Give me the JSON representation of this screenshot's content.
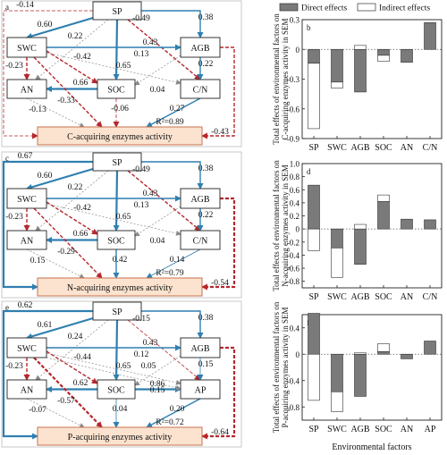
{
  "colors": {
    "positive": "#2f7fb0",
    "negative": "#b5272d",
    "weak": "#8a8a8a",
    "box_fill": "#fbe3cf",
    "box_stroke": "#c9714c",
    "direct_fill": "#7a7a7a",
    "indirect_fill": "#ffffff",
    "axis": "#222222"
  },
  "legend": {
    "direct": "Direct effects",
    "indirect": "Indirect effects"
  },
  "x_axis_title": "Environmental factors",
  "sem_panels": [
    {
      "letter": "a",
      "outcome": "C-acquiring enzymes activity",
      "r2": "R²=0.89",
      "end_node": "C/N",
      "coefficients": {
        "sp_curve": "-0.14",
        "sp_swc": "0.60",
        "sp_agb": "0.38",
        "sp_an": "0.22",
        "sp_cn": "-0.49",
        "swc_agb": "0.43",
        "swc_soc": "-0.42",
        "swc_cn": "0.13",
        "sp_soc": "0.65",
        "swc_an": "-0.23",
        "agb_cn": "0.22",
        "soc_an": "0.66",
        "agb_soc": "0.04",
        "swc_out": "-0.33",
        "soc_out": "-0.06",
        "an_out": "-0.13",
        "cn_out": "0.27",
        "agb_out": "-0.43"
      }
    },
    {
      "letter": "c",
      "outcome": "N-acquiring enzymes activity",
      "r2": "R²=0.79",
      "end_node": "C/N",
      "coefficients": {
        "sp_curve": "0.67",
        "sp_swc": "0.60",
        "sp_agb": "0.38",
        "sp_an": "0.22",
        "sp_cn": "-0.49",
        "swc_agb": "0.43",
        "swc_soc": "-0.42",
        "swc_cn": "0.13",
        "sp_soc": "0.65",
        "swc_an": "-0.23",
        "agb_cn": "0.22",
        "soc_an": "0.66",
        "agb_soc": "0.04",
        "swc_out": "-0.29",
        "soc_out": "0.42",
        "an_out": "0.15",
        "cn_out": "0.14",
        "agb_out": "-0.54"
      }
    },
    {
      "letter": "e",
      "outcome": "P-acquiring enzymes activity",
      "r2": "R²=0.72",
      "end_node": "AP",
      "coefficients": {
        "sp_curve": "0.62",
        "sp_swc": "0.61",
        "sp_agb": "0.38",
        "sp_an": "0.24",
        "sp_cn": "-0.15",
        "swc_agb": "0.43",
        "swc_soc": "-0.44",
        "swc_cn": "0.12",
        "sp_soc": "0.65",
        "swc_an": "-0.23",
        "agb_cn": "0.15",
        "soc_an": "0.62",
        "soc_ap": "0.86",
        "swc_ap": "0.05",
        "agb_soc": "0.15",
        "swc_out": "-0.57",
        "soc_out": "0.04",
        "an_out": "-0.07",
        "cn_out": "0.20",
        "agb_out": "-0.64"
      }
    }
  ],
  "chart_data": [
    {
      "type": "bar",
      "panel_letter": "b",
      "ylabel": "Total effects of environmental factors on C-acquiring enzymes activity in SEM",
      "categories": [
        "SP",
        "SWC",
        "AGB",
        "SOC",
        "AN",
        "C/N"
      ],
      "ylim": [
        -0.9,
        0.3
      ],
      "yticks": [
        "0.3",
        "0",
        "-0.3",
        "-0.6",
        "-0.9"
      ],
      "series": [
        {
          "name": "Direct effects",
          "values": [
            -0.14,
            -0.33,
            -0.43,
            -0.06,
            -0.13,
            0.27
          ]
        },
        {
          "name": "Indirect effects",
          "values": [
            -0.66,
            -0.06,
            0.04,
            -0.06,
            0.0,
            0.0
          ]
        }
      ]
    },
    {
      "type": "bar",
      "panel_letter": "d",
      "ylabel": "Total effects of environmental factors on N-acquiring enzymes activity in SEM",
      "categories": [
        "SP",
        "SWC",
        "AGB",
        "SOC",
        "AN",
        "C/N"
      ],
      "ylim": [
        -0.9,
        1.0
      ],
      "yticks": [
        "1.0",
        "0.8",
        "0.6",
        "0.4",
        "0.2",
        "0",
        "-0.2",
        "-0.4",
        "-0.6",
        "-0.8"
      ],
      "series": [
        {
          "name": "Direct effects",
          "values": [
            0.67,
            -0.29,
            -0.54,
            0.42,
            0.15,
            0.14
          ]
        },
        {
          "name": "Indirect effects",
          "values": [
            -0.33,
            -0.45,
            0.07,
            0.1,
            0.0,
            0.0
          ]
        }
      ]
    },
    {
      "type": "bar",
      "panel_letter": "f",
      "ylabel": "Total effects of environmental factors on P-acquiring enzymes activity in SEM",
      "categories": [
        "SP",
        "SWC",
        "AGB",
        "SOC",
        "AN",
        "AP"
      ],
      "ylim": [
        -1.0,
        0.6
      ],
      "yticks": [
        "0.4",
        "0",
        "-0.4",
        "-0.8"
      ],
      "series": [
        {
          "name": "Direct effects",
          "values": [
            0.62,
            -0.57,
            -0.64,
            0.04,
            -0.07,
            0.2
          ]
        },
        {
          "name": "Indirect effects",
          "values": [
            -0.7,
            -0.3,
            0.02,
            0.12,
            0.0,
            0.0
          ]
        }
      ]
    }
  ]
}
